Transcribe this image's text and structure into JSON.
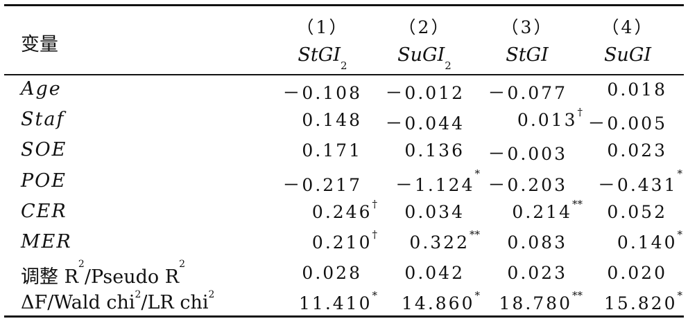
{
  "header": {
    "variable_label": "变量",
    "column_numbers": [
      "（1）",
      "（2）",
      "（3）",
      "（4）"
    ],
    "column_vars": [
      {
        "base": "StGI",
        "sub": "2"
      },
      {
        "base": "SuGI",
        "sub": "2"
      },
      {
        "base": "StGI",
        "sub": ""
      },
      {
        "base": "SuGI",
        "sub": ""
      }
    ]
  },
  "rows": [
    {
      "label": "Age",
      "values": [
        {
          "v": "－0.108",
          "s": ""
        },
        {
          "v": "－0.012",
          "s": ""
        },
        {
          "v": "－0.077",
          "s": ""
        },
        {
          "v": "0.018",
          "s": ""
        }
      ]
    },
    {
      "label": "Staf",
      "values": [
        {
          "v": "0.148",
          "s": ""
        },
        {
          "v": "－0.044",
          "s": ""
        },
        {
          "v": "0.013",
          "s": "†"
        },
        {
          "v": "－0.005",
          "s": ""
        }
      ]
    },
    {
      "label": "SOE",
      "values": [
        {
          "v": "0.171",
          "s": ""
        },
        {
          "v": "0.136",
          "s": ""
        },
        {
          "v": "－0.003",
          "s": ""
        },
        {
          "v": "0.023",
          "s": ""
        }
      ]
    },
    {
      "label": "POE",
      "values": [
        {
          "v": "－0.217",
          "s": ""
        },
        {
          "v": "－1.124",
          "s": "*"
        },
        {
          "v": "－0.203",
          "s": ""
        },
        {
          "v": "－0.431",
          "s": "*"
        }
      ]
    },
    {
      "label": "CER",
      "values": [
        {
          "v": "0.246",
          "s": "†"
        },
        {
          "v": "0.034",
          "s": ""
        },
        {
          "v": "0.214",
          "s": "**"
        },
        {
          "v": "0.052",
          "s": ""
        }
      ]
    },
    {
      "label": "MER",
      "values": [
        {
          "v": "0.210",
          "s": "†"
        },
        {
          "v": "0.322",
          "s": "**"
        },
        {
          "v": "0.083",
          "s": ""
        },
        {
          "v": "0.140",
          "s": "*"
        }
      ]
    }
  ],
  "stat_rows": [
    {
      "label_cn": "调整",
      "label_rest": " R",
      "sup1": "2",
      "label_mid": "/Pseudo R",
      "sup2": "2",
      "label_end": "",
      "values": [
        {
          "v": "0.028",
          "s": ""
        },
        {
          "v": "0.042",
          "s": ""
        },
        {
          "v": "0.023",
          "s": ""
        },
        {
          "v": "0.020",
          "s": ""
        }
      ]
    },
    {
      "label_cn": "",
      "label_rest": "ΔF/Wald chi",
      "sup1": "2",
      "label_mid": "/LR chi",
      "sup2": "2",
      "label_end": "",
      "values": [
        {
          "v": "11.410",
          "s": "*"
        },
        {
          "v": "14.860",
          "s": "*"
        },
        {
          "v": "18.780",
          "s": "**"
        },
        {
          "v": "15.820",
          "s": "*"
        }
      ]
    }
  ]
}
